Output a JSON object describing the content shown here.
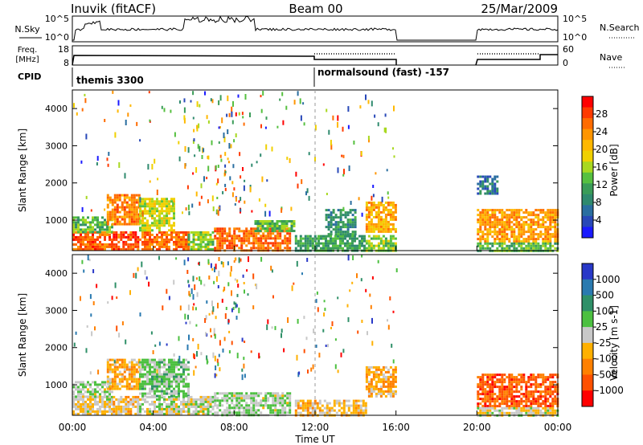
{
  "header": {
    "station": "Inuvik (fitACF)",
    "beam": "Beam 00",
    "date": "25/Mar/2009"
  },
  "panels": {
    "nsky": {
      "label": "N.Sky",
      "right_label": "N.Search",
      "tick_top": "10^5",
      "tick_bottom": "10^0",
      "rtick_top": "10^5",
      "rtick_bottom": "10^0"
    },
    "freq": {
      "label_line1": "Freq.",
      "label_line2": "[MHz]",
      "right_label": "Nave",
      "tick_top": "18",
      "tick_bottom": "8",
      "rtick_top": "60",
      "rtick_bottom": "0"
    },
    "cpid": {
      "label": "CPID",
      "segments": [
        {
          "text": "themis 3300",
          "start": 0,
          "end": 12
        },
        {
          "text": "normalsound (fast) -157",
          "start": 12,
          "end": 24
        }
      ]
    }
  },
  "colorbars": {
    "power": {
      "label": "Power [dB]",
      "ticks": [
        "28",
        "24",
        "20",
        "16",
        "12",
        "8",
        "4"
      ],
      "colors": [
        "#ff0000",
        "#ff3a00",
        "#ff6b00",
        "#ff9500",
        "#ffb800",
        "#f0d000",
        "#a8d820",
        "#56c040",
        "#3a9c58",
        "#2f8a6e",
        "#2a6ea0",
        "#2848b8",
        "#1a1aff"
      ]
    },
    "velocity": {
      "label": "Velocity [m s-1]",
      "ticks": [
        "1000",
        "500",
        "100",
        "25",
        "-25",
        "-100",
        "-500",
        "-1000"
      ],
      "colors": [
        "#2838c8",
        "#2a7ab0",
        "#2f9068",
        "#4cc040",
        "#c8c8c8",
        "#ffb000",
        "#ff8000",
        "#ff5000",
        "#ff0000"
      ]
    }
  },
  "chart_data": [
    {
      "type": "heatmap",
      "name": "power",
      "ylabel": "Slant Range [km]",
      "xlabel": "Time UT",
      "xlim": [
        0,
        24
      ],
      "ylim": [
        180,
        4500
      ],
      "xticks": [
        "00:00",
        "04:00",
        "08:00",
        "12:00",
        "16:00",
        "20:00",
        "00:00"
      ],
      "yticks": [
        1000,
        2000,
        3000,
        4000
      ],
      "value_range": [
        0,
        30
      ],
      "regions": [
        {
          "t0": 0.0,
          "t1": 2.0,
          "r0": 200,
          "r1": 700,
          "v": 26
        },
        {
          "t0": 0.0,
          "t1": 2.0,
          "r0": 700,
          "r1": 1100,
          "v": 12
        },
        {
          "t0": 2.0,
          "t1": 3.3,
          "r0": 200,
          "r1": 700,
          "v": 27
        },
        {
          "t0": 1.7,
          "t1": 3.3,
          "r0": 900,
          "r1": 1700,
          "v": 24
        },
        {
          "t0": 3.3,
          "t1": 5.7,
          "r0": 200,
          "r1": 700,
          "v": 25
        },
        {
          "t0": 3.3,
          "t1": 5.0,
          "r0": 700,
          "r1": 1600,
          "v": 16
        },
        {
          "t0": 5.7,
          "t1": 7.0,
          "r0": 200,
          "r1": 700,
          "v": 14
        },
        {
          "t0": 7.0,
          "t1": 10.8,
          "r0": 200,
          "r1": 800,
          "v": 25
        },
        {
          "t0": 9.0,
          "t1": 11.0,
          "r0": 700,
          "r1": 1000,
          "v": 12
        },
        {
          "t0": 11.0,
          "t1": 12.0,
          "r0": 200,
          "r1": 600,
          "v": 10
        },
        {
          "t0": 12.0,
          "t1": 14.5,
          "r0": 200,
          "r1": 600,
          "v": 10
        },
        {
          "t0": 12.5,
          "t1": 14.0,
          "r0": 600,
          "r1": 1300,
          "v": 8
        },
        {
          "t0": 14.5,
          "t1": 16.0,
          "r0": 700,
          "r1": 1500,
          "v": 21
        },
        {
          "t0": 14.5,
          "t1": 16.0,
          "r0": 200,
          "r1": 600,
          "v": 14
        },
        {
          "t0": 20.0,
          "t1": 24.0,
          "r0": 400,
          "r1": 1300,
          "v": 22
        },
        {
          "t0": 20.0,
          "t1": 24.0,
          "r0": 200,
          "r1": 400,
          "v": 12
        },
        {
          "t0": 20.0,
          "t1": 21.0,
          "r0": 1700,
          "r1": 2200,
          "v": 6
        }
      ]
    },
    {
      "type": "heatmap",
      "name": "velocity",
      "ylabel": "Slant Range [km]",
      "xlabel": "Time UT",
      "xlim": [
        0,
        24
      ],
      "ylim": [
        180,
        4500
      ],
      "xticks": [
        "00:00",
        "04:00",
        "08:00",
        "12:00",
        "16:00",
        "20:00",
        "00:00"
      ],
      "yticks": [
        1000,
        2000,
        3000,
        4000
      ],
      "value_range": [
        -1000,
        1000
      ],
      "regions": [
        {
          "t0": 0.0,
          "t1": 2.0,
          "r0": 200,
          "r1": 700,
          "v": -100
        },
        {
          "t0": 0.0,
          "t1": 2.0,
          "r0": 700,
          "r1": 1100,
          "v": 100
        },
        {
          "t0": 2.0,
          "t1": 3.3,
          "r0": 200,
          "r1": 700,
          "v": -200
        },
        {
          "t0": 1.7,
          "t1": 3.3,
          "r0": 900,
          "r1": 1700,
          "v": -300
        },
        {
          "t0": 3.3,
          "t1": 5.7,
          "r0": 200,
          "r1": 700,
          "v": 10
        },
        {
          "t0": 3.3,
          "t1": 5.7,
          "r0": 700,
          "r1": 1700,
          "v": 200
        },
        {
          "t0": 5.7,
          "t1": 7.0,
          "r0": 200,
          "r1": 700,
          "v": 10
        },
        {
          "t0": 7.0,
          "t1": 10.8,
          "r0": 200,
          "r1": 800,
          "v": 100
        },
        {
          "t0": 11.0,
          "t1": 14.5,
          "r0": 200,
          "r1": 600,
          "v": -200
        },
        {
          "t0": 14.5,
          "t1": 16.0,
          "r0": 700,
          "r1": 1500,
          "v": -300
        },
        {
          "t0": 20.0,
          "t1": 24.0,
          "r0": 400,
          "r1": 1300,
          "v": -700
        },
        {
          "t0": 20.0,
          "t1": 24.0,
          "r0": 200,
          "r1": 400,
          "v": -50
        }
      ]
    }
  ]
}
